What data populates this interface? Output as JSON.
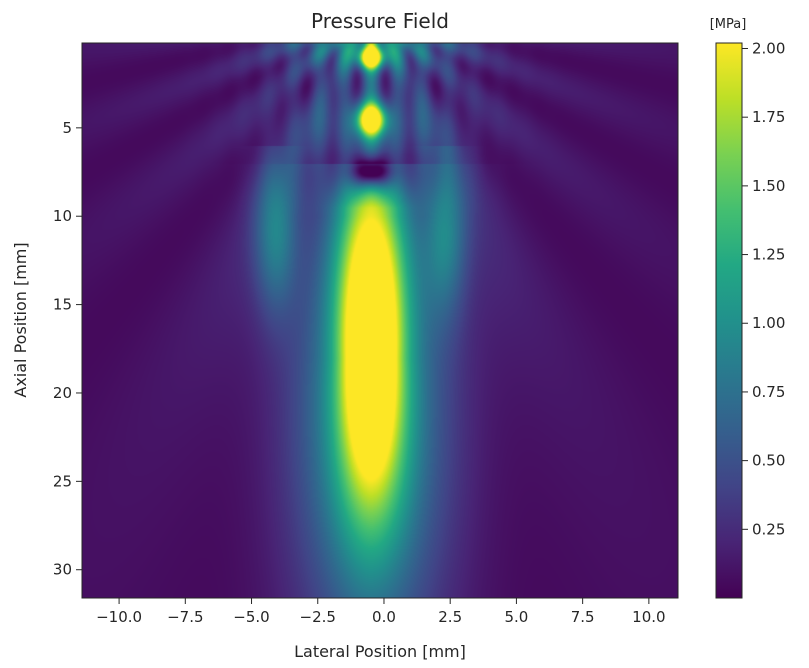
{
  "chart_data": {
    "type": "heatmap",
    "title": "Pressure Field",
    "xlabel": "Lateral Position [mm]",
    "ylabel": "Axial Position [mm]",
    "colorbar_label": "[MPa]",
    "colormap": "viridis",
    "xlim": [
      -11.4,
      11.1
    ],
    "ylim": [
      31.6,
      0.2
    ],
    "y_inverted": true,
    "x_ticks": [
      {
        "value": -10.0,
        "label": "−10.0"
      },
      {
        "value": -7.5,
        "label": "−7.5"
      },
      {
        "value": -5.0,
        "label": "−5.0"
      },
      {
        "value": -2.5,
        "label": "−2.5"
      },
      {
        "value": 0.0,
        "label": "0.0"
      },
      {
        "value": 2.5,
        "label": "2.5"
      },
      {
        "value": 5.0,
        "label": "5.0"
      },
      {
        "value": 7.5,
        "label": "7.5"
      },
      {
        "value": 10.0,
        "label": "10.0"
      }
    ],
    "y_ticks": [
      {
        "value": 5,
        "label": "5"
      },
      {
        "value": 10,
        "label": "10"
      },
      {
        "value": 15,
        "label": "15"
      },
      {
        "value": 20,
        "label": "20"
      },
      {
        "value": 25,
        "label": "25"
      },
      {
        "value": 30,
        "label": "30"
      }
    ],
    "colorbar_range": [
      0.0,
      2.02
    ],
    "colorbar_ticks": [
      {
        "value": 0.25,
        "label": "0.25"
      },
      {
        "value": 0.5,
        "label": "0.50"
      },
      {
        "value": 0.75,
        "label": "0.75"
      },
      {
        "value": 1.0,
        "label": "1.00"
      },
      {
        "value": 1.25,
        "label": "1.25"
      },
      {
        "value": 1.5,
        "label": "1.50"
      },
      {
        "value": 1.75,
        "label": "1.75"
      },
      {
        "value": 2.0,
        "label": "2.00"
      }
    ],
    "field": {
      "focus_center_x": -0.5,
      "focus_peak_depth": 17.0,
      "peak_pressure": 2.0,
      "near_field_maxima": [
        {
          "x": -0.5,
          "y": 1.0,
          "value": 2.0
        },
        {
          "x": -0.5,
          "y": 4.5,
          "value": 2.0
        }
      ],
      "near_field_null": {
        "x": -0.5,
        "y": 7.5,
        "value": 0.1
      },
      "grating_lobe_width_mm": 4.5,
      "background": 0.05
    },
    "grid": false
  }
}
